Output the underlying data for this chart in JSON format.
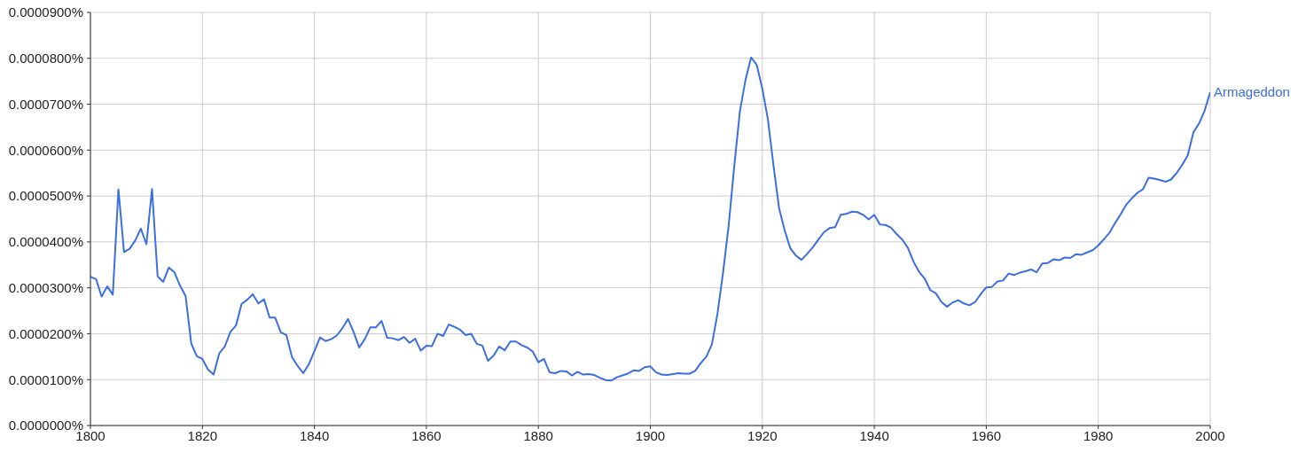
{
  "chart_data": {
    "type": "line",
    "x": [
      1800,
      1801,
      1802,
      1803,
      1804,
      1805,
      1806,
      1807,
      1808,
      1809,
      1810,
      1811,
      1812,
      1813,
      1814,
      1815,
      1816,
      1817,
      1818,
      1819,
      1820,
      1821,
      1822,
      1823,
      1824,
      1825,
      1826,
      1827,
      1828,
      1829,
      1830,
      1831,
      1832,
      1833,
      1834,
      1835,
      1836,
      1837,
      1838,
      1839,
      1840,
      1841,
      1842,
      1843,
      1844,
      1845,
      1846,
      1847,
      1848,
      1849,
      1850,
      1851,
      1852,
      1853,
      1854,
      1855,
      1856,
      1857,
      1858,
      1859,
      1860,
      1861,
      1862,
      1863,
      1864,
      1865,
      1866,
      1867,
      1868,
      1869,
      1870,
      1871,
      1872,
      1873,
      1874,
      1875,
      1876,
      1877,
      1878,
      1879,
      1880,
      1881,
      1882,
      1883,
      1884,
      1885,
      1886,
      1887,
      1888,
      1889,
      1890,
      1891,
      1892,
      1893,
      1894,
      1895,
      1896,
      1897,
      1898,
      1899,
      1900,
      1901,
      1902,
      1903,
      1904,
      1905,
      1906,
      1907,
      1908,
      1909,
      1910,
      1911,
      1912,
      1913,
      1914,
      1915,
      1916,
      1917,
      1918,
      1919,
      1920,
      1921,
      1922,
      1923,
      1924,
      1925,
      1926,
      1927,
      1928,
      1929,
      1930,
      1931,
      1932,
      1933,
      1934,
      1935,
      1936,
      1937,
      1938,
      1939,
      1940,
      1941,
      1942,
      1943,
      1944,
      1945,
      1946,
      1947,
      1948,
      1949,
      1950,
      1951,
      1952,
      1953,
      1954,
      1955,
      1956,
      1957,
      1958,
      1959,
      1960,
      1961,
      1962,
      1963,
      1964,
      1965,
      1966,
      1967,
      1968,
      1969,
      1970,
      1971,
      1972,
      1973,
      1974,
      1975,
      1976,
      1977,
      1978,
      1979,
      1980,
      1981,
      1982,
      1983,
      1984,
      1985,
      1986,
      1987,
      1988,
      1989,
      1990,
      1991,
      1992,
      1993,
      1994,
      1995,
      1996,
      1997,
      1998,
      1999,
      2000
    ],
    "series": [
      {
        "name": "Armageddon",
        "color": "#3c6ee0",
        "values": [
          3.24e-05,
          3.19e-05,
          2.81e-05,
          3.03e-05,
          2.85e-05,
          5.14e-05,
          3.78e-05,
          3.85e-05,
          4.03e-05,
          4.29e-05,
          3.95e-05,
          5.15e-05,
          3.25e-05,
          3.13e-05,
          3.44e-05,
          3.34e-05,
          3.05e-05,
          2.82e-05,
          1.79e-05,
          1.51e-05,
          1.45e-05,
          1.22e-05,
          1.11e-05,
          1.57e-05,
          1.72e-05,
          2.04e-05,
          2.18e-05,
          2.65e-05,
          2.74e-05,
          2.86e-05,
          2.66e-05,
          2.75e-05,
          2.35e-05,
          2.35e-05,
          2.03e-05,
          1.97e-05,
          1.49e-05,
          1.3e-05,
          1.14e-05,
          1.33e-05,
          1.62e-05,
          1.92e-05,
          1.84e-05,
          1.88e-05,
          1.96e-05,
          2.12e-05,
          2.32e-05,
          2.04e-05,
          1.7e-05,
          1.88e-05,
          2.14e-05,
          2.14e-05,
          2.28e-05,
          1.91e-05,
          1.9e-05,
          1.86e-05,
          1.93e-05,
          1.8e-05,
          1.89e-05,
          1.63e-05,
          1.74e-05,
          1.73e-05,
          2e-05,
          1.95e-05,
          2.2e-05,
          2.15e-05,
          2.09e-05,
          1.97e-05,
          2e-05,
          1.78e-05,
          1.74e-05,
          1.41e-05,
          1.52e-05,
          1.72e-05,
          1.64e-05,
          1.83e-05,
          1.83e-05,
          1.75e-05,
          1.7e-05,
          1.61e-05,
          1.38e-05,
          1.45e-05,
          1.16e-05,
          1.14e-05,
          1.19e-05,
          1.18e-05,
          1.09e-05,
          1.17e-05,
          1.11e-05,
          1.12e-05,
          1.1e-05,
          1.04e-05,
          9.9e-06,
          9.8e-06,
          1.05e-05,
          1.09e-05,
          1.13e-05,
          1.2e-05,
          1.19e-05,
          1.27e-05,
          1.29e-05,
          1.16e-05,
          1.11e-05,
          1.1e-05,
          1.12e-05,
          1.14e-05,
          1.13e-05,
          1.13e-05,
          1.19e-05,
          1.36e-05,
          1.5e-05,
          1.77e-05,
          2.44e-05,
          3.34e-05,
          4.37e-05,
          5.66e-05,
          6.85e-05,
          7.53e-05,
          8.02e-05,
          7.86e-05,
          7.34e-05,
          6.67e-05,
          5.66e-05,
          4.73e-05,
          4.25e-05,
          3.86e-05,
          3.7e-05,
          3.61e-05,
          3.74e-05,
          3.88e-05,
          4.05e-05,
          4.21e-05,
          4.3e-05,
          4.32e-05,
          4.59e-05,
          4.61e-05,
          4.66e-05,
          4.65e-05,
          4.59e-05,
          4.49e-05,
          4.59e-05,
          4.38e-05,
          4.37e-05,
          4.31e-05,
          4.17e-05,
          4.05e-05,
          3.87e-05,
          3.57e-05,
          3.35e-05,
          3.2e-05,
          2.95e-05,
          2.88e-05,
          2.69e-05,
          2.59e-05,
          2.68e-05,
          2.73e-05,
          2.66e-05,
          2.62e-05,
          2.69e-05,
          2.86e-05,
          3.01e-05,
          3.02e-05,
          3.14e-05,
          3.16e-05,
          3.31e-05,
          3.28e-05,
          3.33e-05,
          3.36e-05,
          3.4e-05,
          3.34e-05,
          3.53e-05,
          3.54e-05,
          3.62e-05,
          3.6e-05,
          3.66e-05,
          3.65e-05,
          3.73e-05,
          3.72e-05,
          3.77e-05,
          3.82e-05,
          3.92e-05,
          4.06e-05,
          4.2e-05,
          4.41e-05,
          4.6e-05,
          4.81e-05,
          4.95e-05,
          5.07e-05,
          5.15e-05,
          5.4e-05,
          5.38e-05,
          5.35e-05,
          5.31e-05,
          5.36e-05,
          5.5e-05,
          5.68e-05,
          5.89e-05,
          6.39e-05,
          6.58e-05,
          6.86e-05,
          7.26e-05
        ]
      }
    ],
    "xlim": [
      1800,
      2000
    ],
    "xticks": [
      1800,
      1820,
      1840,
      1860,
      1880,
      1900,
      1920,
      1940,
      1960,
      1980,
      2000
    ],
    "ylim": [
      0,
      9e-05
    ],
    "yticks": [
      {
        "value": 0,
        "label": "0.0000000%"
      },
      {
        "value": 1e-05,
        "label": "0.0000100%"
      },
      {
        "value": 2e-05,
        "label": "0.0000200%"
      },
      {
        "value": 3e-05,
        "label": "0.0000300%"
      },
      {
        "value": 4e-05,
        "label": "0.0000400%"
      },
      {
        "value": 5e-05,
        "label": "0.0000500%"
      },
      {
        "value": 6e-05,
        "label": "0.0000600%"
      },
      {
        "value": 7e-05,
        "label": "0.0000700%"
      },
      {
        "value": 8e-05,
        "label": "0.0000800%"
      },
      {
        "value": 9e-05,
        "label": "0.0000900%"
      }
    ],
    "grid": true
  }
}
